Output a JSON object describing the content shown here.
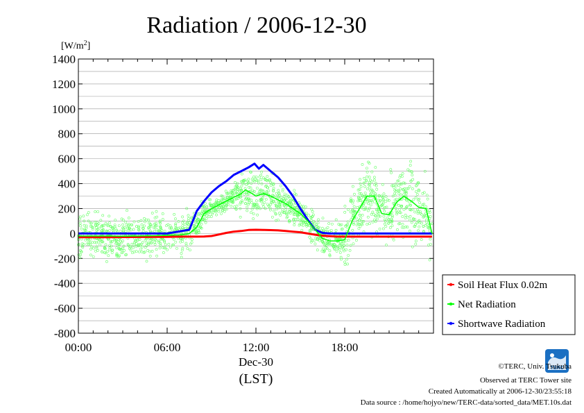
{
  "chart_data": {
    "type": "line",
    "title": "Radiation / 2006-12-30",
    "ylabel_unit": "[W/m",
    "ylabel_unit_sup": "2",
    "ylabel_unit_end": "]",
    "ylim": [
      -800,
      1400
    ],
    "yticks": [
      1400,
      1200,
      1000,
      800,
      600,
      400,
      200,
      0,
      -200,
      -400,
      -600,
      -800
    ],
    "xlim": [
      0,
      24
    ],
    "xticks": [
      {
        "x": 0,
        "label": "00:00"
      },
      {
        "x": 6,
        "label": "06:00"
      },
      {
        "x": 12,
        "label": "12:00"
      },
      {
        "x": 18,
        "label": "18:00"
      }
    ],
    "date_label": "Dec-30",
    "xlabel": "(LST)",
    "grid": true,
    "legend_position": "right-bottom",
    "series": [
      {
        "name": "Soil Heat Flux 0.02m",
        "color": "#ff0000",
        "x": [
          0,
          2,
          4,
          6,
          7,
          8,
          8.5,
          9,
          9.5,
          10,
          10.5,
          11,
          11.5,
          12,
          12.5,
          13,
          13.5,
          14,
          14.5,
          15,
          15.5,
          16,
          16.5,
          17,
          17.5,
          18,
          20,
          22,
          23.9
        ],
        "y": [
          -30,
          -30,
          -28,
          -27,
          -25,
          -25,
          -24,
          -20,
          -8,
          5,
          15,
          20,
          28,
          30,
          29,
          27,
          25,
          20,
          15,
          10,
          0,
          -10,
          -18,
          -22,
          -25,
          -25,
          -25,
          -25,
          -25
        ]
      },
      {
        "name": "Net Radiation",
        "color": "#00ff00",
        "x": [
          0,
          1,
          2,
          3,
          4,
          5,
          6,
          7,
          7.5,
          8,
          8.5,
          9,
          9.5,
          10,
          10.5,
          11,
          11.3,
          11.6,
          12,
          12.5,
          13,
          13.5,
          14,
          14.5,
          15,
          15.5,
          16,
          16.5,
          17,
          17.5,
          18,
          18.5,
          19,
          19.5,
          20,
          20.5,
          21,
          21.5,
          22,
          22.5,
          23,
          23.5,
          23.9
        ],
        "y": [
          -20,
          -20,
          -20,
          -22,
          -20,
          -18,
          -15,
          -10,
          0,
          50,
          160,
          200,
          230,
          260,
          290,
          320,
          350,
          330,
          300,
          320,
          300,
          270,
          240,
          200,
          160,
          100,
          30,
          -40,
          -60,
          -60,
          -50,
          100,
          200,
          300,
          300,
          160,
          150,
          250,
          300,
          260,
          210,
          200,
          0
        ]
      },
      {
        "name": "Shortwave Radiation",
        "color": "#0000ff",
        "x": [
          0,
          2,
          4,
          6,
          7.5,
          8,
          8.5,
          9,
          9.5,
          10,
          10.5,
          11,
          11.5,
          11.9,
          12.2,
          12.5,
          13,
          13.5,
          14,
          14.5,
          15,
          15.5,
          16,
          16.5,
          17,
          18,
          20,
          22,
          23.9
        ],
        "y": [
          0,
          0,
          0,
          0,
          30,
          180,
          260,
          330,
          380,
          420,
          470,
          500,
          530,
          560,
          520,
          550,
          500,
          450,
          380,
          300,
          200,
          110,
          30,
          5,
          0,
          0,
          0,
          0,
          0
        ]
      }
    ]
  },
  "credits": {
    "copyright": "©TERC, Univ. Tsukuba",
    "observed": "Observed at TERC Tower site",
    "created": "Created Automatically at 2006-12-30/23:55:18",
    "source": "Data source : /home/hojyo/new/TERC-data/sorted_data/MET.10s.dat",
    "logo_text": "TERC"
  },
  "colors": {
    "grid": "#999999",
    "scatter": "#66ff66"
  }
}
